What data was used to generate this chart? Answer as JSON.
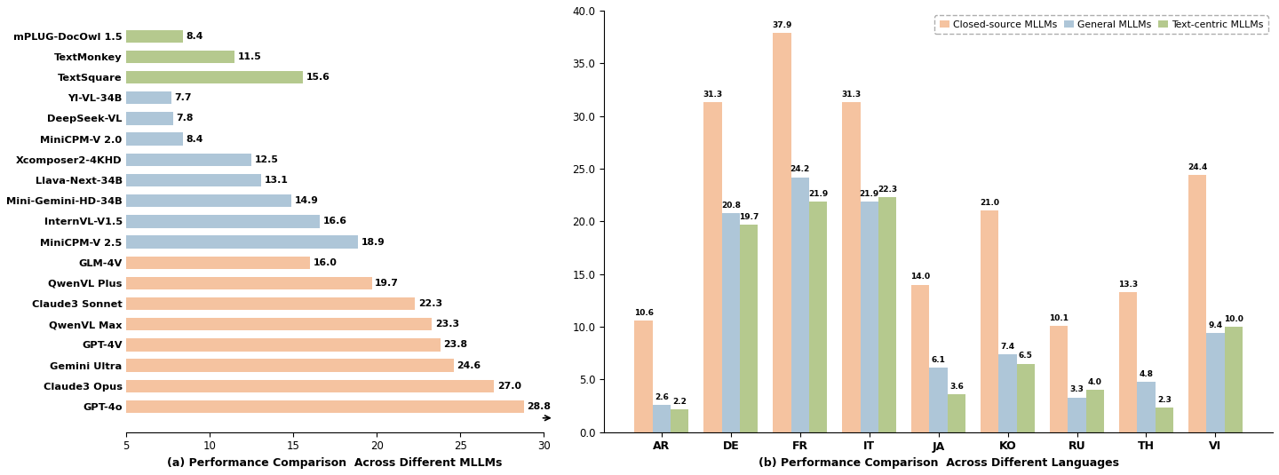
{
  "bar_models": [
    "mPLUG-DocOwl 1.5",
    "TextMonkey",
    "TextSquare",
    "YI-VL-34B",
    "DeepSeek-VL",
    "MiniCPM-V 2.0",
    "Xcomposer2-4KHD",
    "Llava-Next-34B",
    "Mini-Gemini-HD-34B",
    "InternVL-V1.5",
    "MiniCPM-V 2.5",
    "GLM-4V",
    "QwenVL Plus",
    "Claude3 Sonnet",
    "QwenVL Max",
    "GPT-4V",
    "Gemini Ultra",
    "Claude3 Opus",
    "GPT-4o"
  ],
  "bar_values": [
    8.4,
    11.5,
    15.6,
    7.7,
    7.8,
    8.4,
    12.5,
    13.1,
    14.9,
    16.6,
    18.9,
    16.0,
    19.7,
    22.3,
    23.3,
    23.8,
    24.6,
    27.0,
    28.8
  ],
  "bar_colors": [
    "#b5c98e",
    "#b5c98e",
    "#b5c98e",
    "#aec6d8",
    "#aec6d8",
    "#aec6d8",
    "#aec6d8",
    "#aec6d8",
    "#aec6d8",
    "#aec6d8",
    "#aec6d8",
    "#f5c3a0",
    "#f5c3a0",
    "#f5c3a0",
    "#f5c3a0",
    "#f5c3a0",
    "#f5c3a0",
    "#f5c3a0",
    "#f5c3a0"
  ],
  "bar_xlabel": "(a) Performance Comparison  Across Different MLLMs",
  "bar_xlim": [
    5,
    30
  ],
  "bar_xticks": [
    5,
    10,
    15,
    20,
    25,
    30
  ],
  "languages": [
    "AR",
    "DE",
    "FR",
    "IT",
    "JA",
    "KO",
    "RU",
    "TH",
    "VI"
  ],
  "closed_source": [
    10.6,
    31.3,
    37.9,
    31.3,
    14.0,
    21.0,
    10.1,
    13.3,
    24.4
  ],
  "general": [
    2.6,
    20.8,
    24.2,
    21.9,
    6.1,
    7.4,
    3.3,
    4.8,
    9.4
  ],
  "text_centric": [
    2.2,
    19.7,
    21.9,
    22.3,
    3.6,
    6.5,
    4.0,
    2.3,
    10.0
  ],
  "closed_source_color": "#f5c3a0",
  "general_color": "#aec6d8",
  "text_centric_color": "#b5c98e",
  "lang_xlabel": "(b) Performance Comparison  Across Different Languages",
  "lang_ylim": [
    0,
    40
  ],
  "lang_yticks": [
    0.0,
    5.0,
    10.0,
    15.0,
    20.0,
    25.0,
    30.0,
    35.0,
    40.0
  ],
  "lang_ytick_labels": [
    "0.0",
    "5.0",
    "10.0",
    "15.0",
    "20.0",
    "25.0",
    "30.0",
    "35.0",
    "40.0"
  ],
  "legend_labels": [
    "Closed-source MLLMs",
    "General MLLMs",
    "Text-centric MLLMs"
  ]
}
